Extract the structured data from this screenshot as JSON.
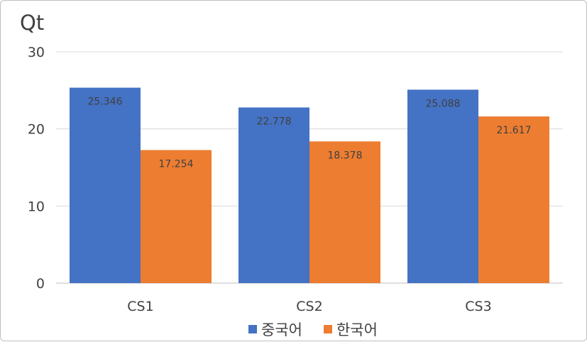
{
  "chart_data": {
    "type": "bar",
    "title": "Qt",
    "categories": [
      "CS1",
      "CS2",
      "CS3"
    ],
    "series": [
      {
        "name": "중국어",
        "values": [
          25.346,
          22.778,
          25.088
        ],
        "labels": [
          "25.346",
          "22.778",
          "25.088"
        ],
        "color": "#4472C4"
      },
      {
        "name": "한국어",
        "values": [
          17.254,
          18.378,
          21.617
        ],
        "labels": [
          "17.254",
          "18.378",
          "21.617"
        ],
        "color": "#ED7D31"
      }
    ],
    "yticks": [
      "0",
      "10",
      "20",
      "30"
    ],
    "ylim": [
      0,
      30
    ],
    "grid": true,
    "legend_position": "bottom"
  }
}
